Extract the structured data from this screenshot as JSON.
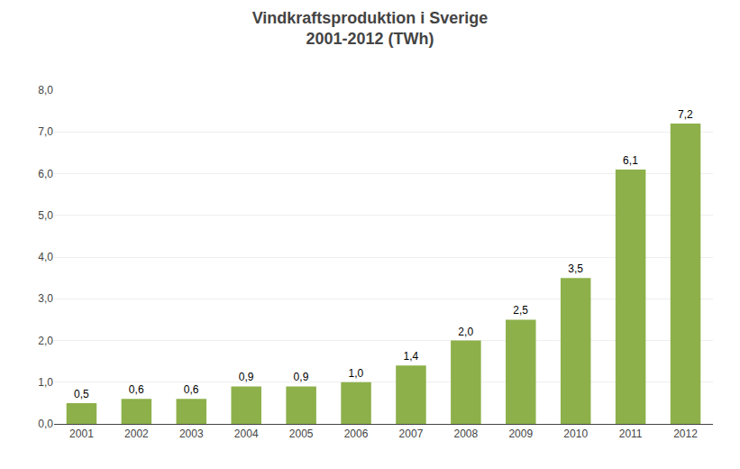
{
  "chart_data": {
    "type": "bar",
    "title": "Vindkraftsproduktion i Sverige\n2001-2012 (TWh)",
    "categories": [
      "2001",
      "2002",
      "2003",
      "2004",
      "2005",
      "2006",
      "2007",
      "2008",
      "2009",
      "2010",
      "2011",
      "2012"
    ],
    "values": [
      0.5,
      0.6,
      0.6,
      0.9,
      0.9,
      1.0,
      1.4,
      2.0,
      2.5,
      3.5,
      6.1,
      7.2
    ],
    "value_labels": [
      "0,5",
      "0,6",
      "0,6",
      "0,9",
      "0,9",
      "1,0",
      "1,4",
      "2,0",
      "2,5",
      "3,5",
      "6,1",
      "7,2"
    ],
    "data_labels": true,
    "color": "#8DB04A",
    "ylim": [
      0,
      8.0
    ],
    "yticks": [
      {
        "value": 0.0,
        "label": "0,0"
      },
      {
        "value": 1.0,
        "label": "1,0"
      },
      {
        "value": 2.0,
        "label": "2,0"
      },
      {
        "value": 3.0,
        "label": "3,0"
      },
      {
        "value": 4.0,
        "label": "4,0"
      },
      {
        "value": 5.0,
        "label": "5,0"
      },
      {
        "value": 6.0,
        "label": "6,0"
      },
      {
        "value": 7.0,
        "label": "7,0"
      },
      {
        "value": 8.0,
        "label": "8,0"
      }
    ],
    "grid": true
  }
}
